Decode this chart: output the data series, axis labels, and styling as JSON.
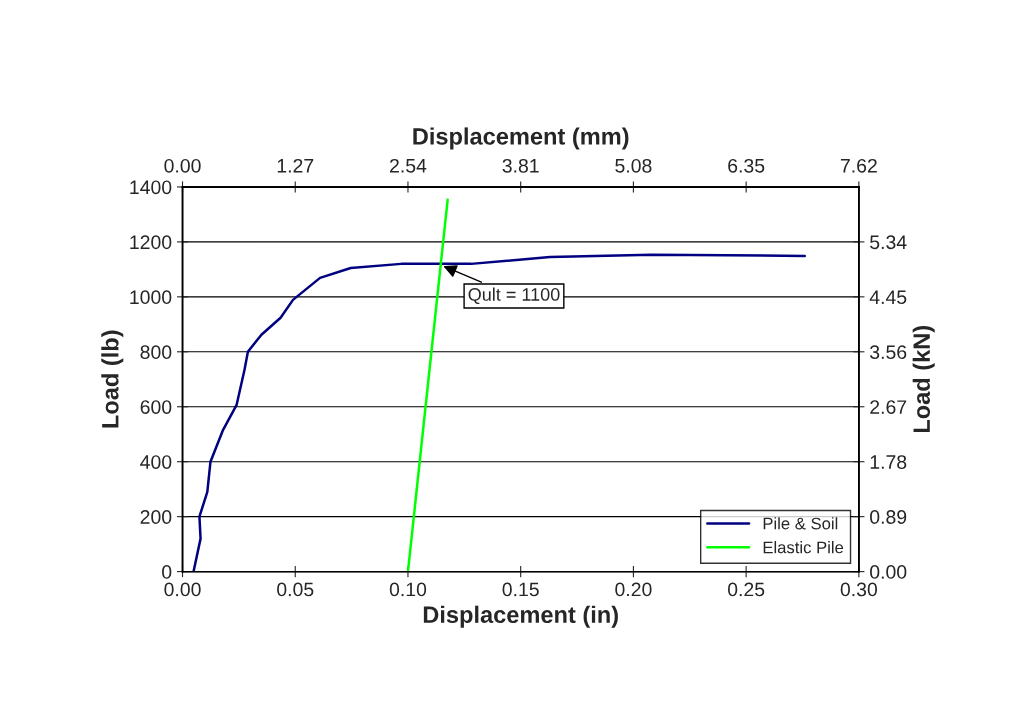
{
  "chart_data": {
    "type": "line",
    "xlabel": "Displacement (in)",
    "ylabel": "Load (lb)",
    "y2label": "Load (kN)",
    "x2label": "Displacement (mm)",
    "xlim": [
      0,
      0.3
    ],
    "xticks": [
      {
        "value": 0,
        "label": "0.00"
      },
      {
        "value": 0.05,
        "label": "0.05"
      },
      {
        "value": 0.1,
        "label": "0.10"
      },
      {
        "value": 0.15,
        "label": "0.15"
      },
      {
        "value": 0.2,
        "label": "0.20"
      },
      {
        "value": 0.25,
        "label": "0.25"
      },
      {
        "value": 0.3,
        "label": "0.30"
      }
    ],
    "ylim": [
      0,
      1400
    ],
    "yticks": [
      0,
      200,
      400,
      600,
      800,
      1000,
      1200,
      1400
    ],
    "x2lim": [
      0,
      7.62
    ],
    "x2ticks": [
      {
        "value": 0,
        "label": "0.00"
      },
      1.27,
      2.54,
      3.81,
      5.08,
      6.35,
      7.62
    ],
    "y2lim": [
      0,
      6.23
    ],
    "y2ticks": [
      {
        "value": 0,
        "label": "0.00"
      },
      0.89,
      1.78,
      2.67,
      3.56,
      4.45,
      5.34
    ],
    "grid": "y",
    "legend": "bottom right",
    "marker": "none",
    "line_style": "solid",
    "series": [
      {
        "name": "Pile & Soil",
        "color": "#000080",
        "x": [
          0.0049,
          0.008,
          0.0075,
          0.011,
          0.0124,
          0.018,
          0.024,
          0.0275,
          0.029,
          0.035,
          0.0435,
          0.049,
          0.061,
          0.0746,
          0.097,
          0.128,
          0.163,
          0.208,
          0.276
        ],
        "values": [
          0,
          120,
          200,
          290,
          400,
          516,
          607,
          735,
          800,
          862,
          924,
          989,
          1069,
          1105,
          1120,
          1120,
          1145,
          1153,
          1149
        ]
      },
      {
        "name": "Elastic Pile",
        "color": "#00ff00",
        "x": [
          0.1,
          0.1176
        ],
        "values": [
          0,
          1353
        ]
      }
    ],
    "annotations": [
      {
        "text": "Qult = 1100",
        "x": 0.1145,
        "y": 1116
      }
    ]
  }
}
